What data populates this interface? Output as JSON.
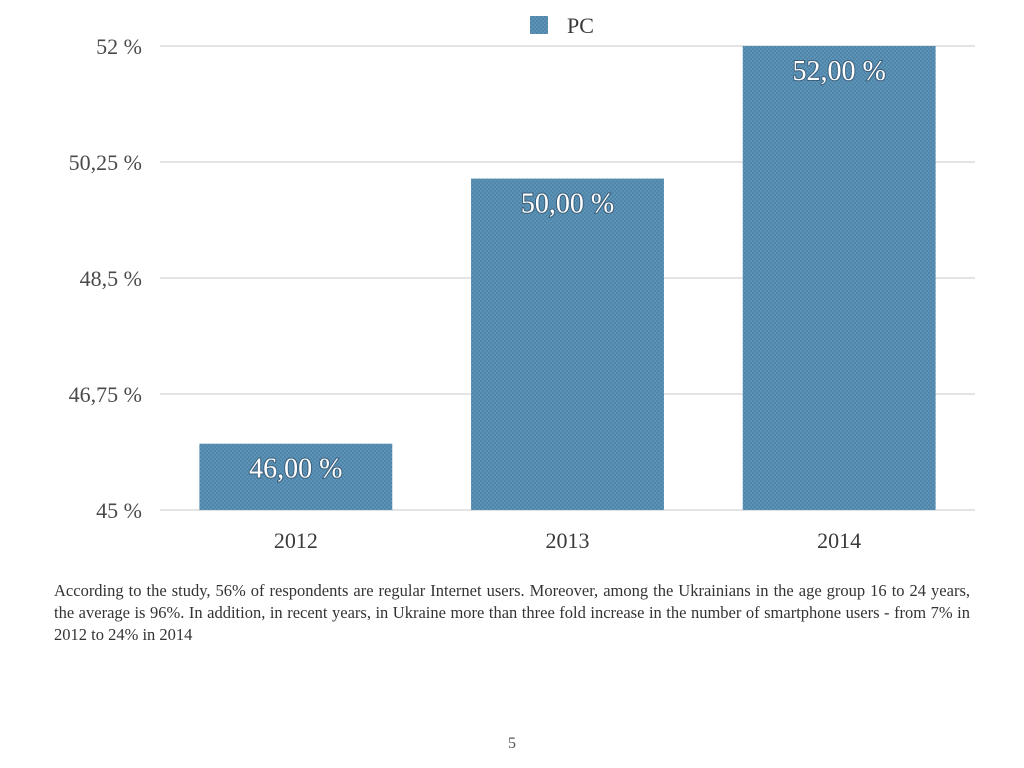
{
  "slide": {
    "caption": "According to the study, 56% of respondents are regular Internet users. Moreover, among the Ukrainians in the age group 16 to 24 years, the average is 96%. In addition, in recent years, in Ukraine more than three fold increase in the number of smartphone users - from 7% in 2012 to 24% in 2014",
    "page_number": "5"
  },
  "chart_data": {
    "type": "bar",
    "title": "",
    "xlabel": "",
    "ylabel": "",
    "categories": [
      "2012",
      "2013",
      "2014"
    ],
    "series": [
      {
        "name": "PC",
        "values": [
          46.0,
          50.0,
          52.0
        ],
        "color": "#5b92b5"
      }
    ],
    "data_labels": [
      "46,00 %",
      "50,00 %",
      "52,00 %"
    ],
    "ylim": [
      45,
      52
    ],
    "y_ticks": [
      45,
      46.75,
      48.5,
      50.25,
      52
    ],
    "y_tick_labels": [
      "45 %",
      "46,75 %",
      "48,5 %",
      "50,25 %",
      "52 %"
    ],
    "grid": true,
    "legend_position": "top-center"
  }
}
